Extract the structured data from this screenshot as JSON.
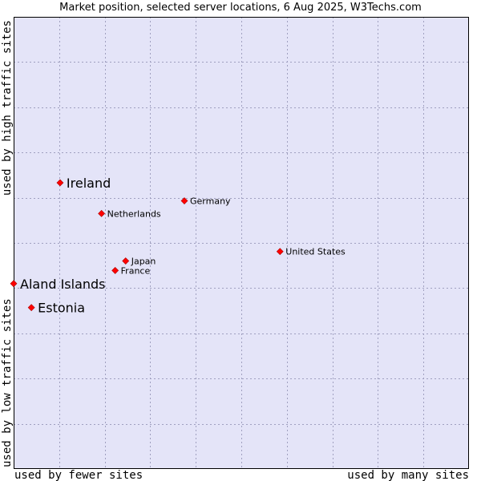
{
  "chart_data": {
    "type": "scatter",
    "title": "Market position, selected server locations, 6 Aug 2025, W3Techs.com",
    "xlabel_left": "used by fewer sites",
    "xlabel_right": "used by many sites",
    "ylabel_bottom": "used by low traffic sites",
    "ylabel_top": "used by high traffic sites",
    "xlim": [
      0,
      100
    ],
    "ylim": [
      0,
      100
    ],
    "grid": true,
    "colors": {
      "plot_background": "#e4e4f8",
      "grid": "#a0a0c0",
      "frame": "#000000",
      "marker": "#ff0000",
      "marker_edge": "#aa0000"
    },
    "points": [
      {
        "label": "Ireland",
        "x": 10.2,
        "y": 63.3,
        "emphasis": true
      },
      {
        "label": "Germany",
        "x": 37.5,
        "y": 59.3,
        "emphasis": false
      },
      {
        "label": "Netherlands",
        "x": 19.3,
        "y": 56.5,
        "emphasis": false
      },
      {
        "label": "United States",
        "x": 58.5,
        "y": 48.1,
        "emphasis": false
      },
      {
        "label": "Japan",
        "x": 24.6,
        "y": 46.0,
        "emphasis": false
      },
      {
        "label": "France",
        "x": 22.3,
        "y": 43.9,
        "emphasis": false
      },
      {
        "label": "Aland Islands",
        "x": 0.0,
        "y": 41.0,
        "emphasis": true
      },
      {
        "label": "Estonia",
        "x": 3.9,
        "y": 35.7,
        "emphasis": true
      }
    ]
  }
}
